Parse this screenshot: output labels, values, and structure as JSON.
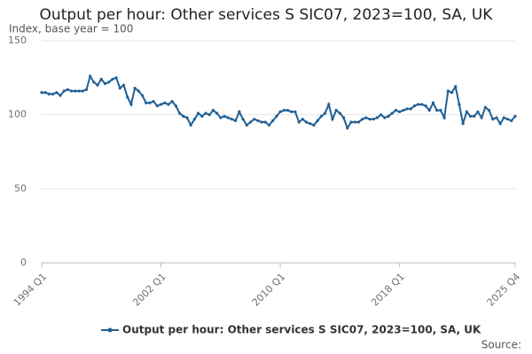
{
  "chart_data": {
    "type": "line",
    "title": "Output per hour: Other services S SIC07, 2023=100, SA, UK",
    "subtitle": "Index, base year = 100",
    "source": "Source:",
    "categories": [
      "1994 Q1",
      null,
      null,
      null,
      null,
      null,
      null,
      null,
      null,
      null,
      null,
      null,
      null,
      null,
      null,
      null,
      null,
      null,
      null,
      null,
      null,
      null,
      null,
      null,
      null,
      null,
      null,
      null,
      null,
      null,
      null,
      null,
      "2002 Q1",
      null,
      null,
      null,
      null,
      null,
      null,
      null,
      null,
      null,
      null,
      null,
      null,
      null,
      null,
      null,
      null,
      null,
      null,
      null,
      null,
      null,
      null,
      null,
      null,
      null,
      null,
      null,
      null,
      null,
      null,
      null,
      "2010 Q1",
      null,
      null,
      null,
      null,
      null,
      null,
      null,
      null,
      null,
      null,
      null,
      null,
      null,
      null,
      null,
      null,
      null,
      null,
      null,
      null,
      null,
      null,
      null,
      null,
      null,
      null,
      null,
      null,
      null,
      null,
      null,
      "2018 Q1",
      null,
      null,
      null,
      null,
      null,
      null,
      null,
      null,
      null,
      null,
      null,
      null,
      null,
      null,
      null,
      null,
      null,
      null,
      null,
      null,
      null,
      null,
      null,
      null,
      null,
      null,
      null,
      null,
      null,
      null,
      "2025 Q4"
    ],
    "series": [
      {
        "name": "Output per hour: Other services S SIC07, 2023=100, SA, UK",
        "color": "#206095",
        "values": [
          115,
          115,
          114,
          114,
          115,
          113,
          116,
          117,
          116,
          116,
          116,
          116,
          117,
          126,
          122,
          120,
          124,
          121,
          122,
          124,
          125,
          118,
          120,
          112,
          107,
          118,
          116,
          113,
          108,
          108,
          109,
          106,
          107,
          108,
          107,
          109,
          106,
          101,
          99,
          98,
          93,
          97,
          101,
          99,
          101,
          100,
          103,
          101,
          98,
          99,
          98,
          97,
          96,
          102,
          97,
          93,
          95,
          97,
          96,
          95,
          95,
          93,
          96,
          99,
          102,
          103,
          103,
          102,
          102,
          95,
          97,
          95,
          94,
          93,
          96,
          99,
          101,
          107,
          97,
          103,
          101,
          98,
          91,
          95,
          95,
          95,
          97,
          98,
          97,
          97,
          98,
          100,
          98,
          99,
          101,
          103,
          102,
          103,
          104,
          104,
          106,
          107,
          107,
          106,
          103,
          108,
          103,
          103,
          98,
          116,
          115,
          119,
          107,
          94,
          102,
          99,
          99,
          102,
          98,
          105,
          103,
          97,
          98,
          94,
          98,
          97,
          96,
          99
        ]
      }
    ],
    "ylim": [
      0,
      150
    ],
    "yticks": [
      0,
      50,
      100,
      150
    ],
    "grid": true
  }
}
